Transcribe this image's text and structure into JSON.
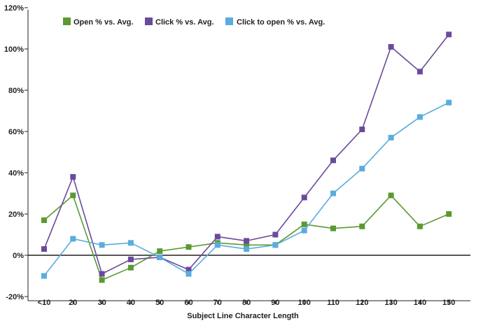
{
  "chart_data": {
    "type": "line",
    "categories": [
      "<10",
      "20",
      "30",
      "40",
      "50",
      "60",
      "70",
      "80",
      "90",
      "100",
      "110",
      "120",
      "130",
      "140",
      "150"
    ],
    "series": [
      {
        "name": "Open % vs. Avg.",
        "color": "#5a9a31",
        "values": [
          17,
          29,
          -12,
          -6,
          2,
          4,
          6,
          5,
          5,
          15,
          13,
          14,
          29,
          14,
          20
        ]
      },
      {
        "name": "Click % vs. Avg.",
        "color": "#6a4a9c",
        "values": [
          3,
          38,
          -9,
          -2,
          -1,
          -7,
          9,
          7,
          10,
          28,
          46,
          61,
          101,
          89,
          107
        ]
      },
      {
        "name": "Click to open % vs. Avg.",
        "color": "#5aacde",
        "values": [
          -10,
          8,
          5,
          6,
          -1,
          -9,
          5,
          3,
          5,
          12,
          30,
          42,
          57,
          67,
          74
        ]
      }
    ],
    "yticks": [
      "120%",
      "100%",
      "80%",
      "60%",
      "40%",
      "20%",
      "0%",
      "-20%"
    ],
    "ylim": [
      -20,
      120
    ],
    "xlabel": "Subject Line Character Length",
    "ylabel": "",
    "grid": false,
    "legend": "top"
  }
}
